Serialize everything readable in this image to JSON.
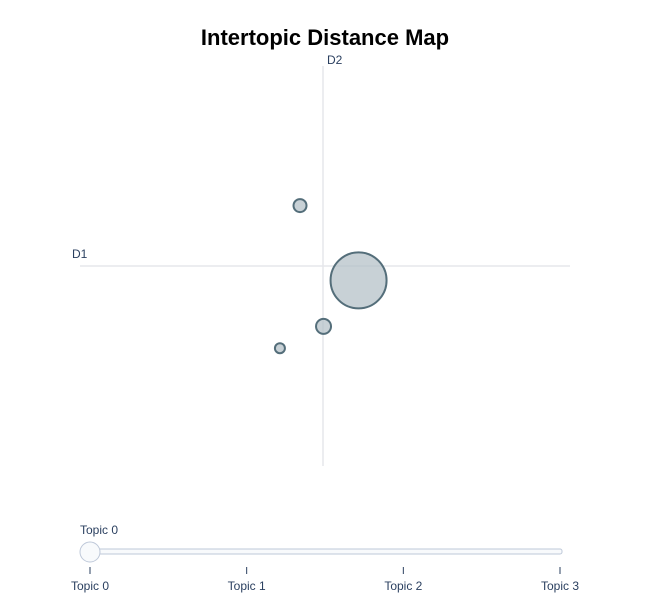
{
  "chart_data": {
    "type": "scatter",
    "title": "Intertopic Distance Map",
    "xlabel": "D1",
    "ylabel": "D2",
    "xlim": [
      -10,
      10
    ],
    "ylim": [
      -10,
      10
    ],
    "grid": false,
    "legend": "none",
    "marker_color": "#b0bec5",
    "marker_edge_color": "#546e7a",
    "points": [
      {
        "topic": "Topic 0",
        "x": 1.37,
        "y": -0.72,
        "size": 56
      },
      {
        "topic": "Topic 1",
        "x": -1.02,
        "y": 3.02,
        "size": 13
      },
      {
        "topic": "Topic 2",
        "x": -0.06,
        "y": -3.02,
        "size": 15
      },
      {
        "topic": "Topic 3",
        "x": -1.84,
        "y": -4.11,
        "size": 10
      }
    ]
  },
  "slider": {
    "current_label": "Topic 0",
    "selected_index": 0,
    "steps": [
      "Topic 0",
      "Topic 1",
      "Topic 2",
      "Topic 3"
    ],
    "track_color": "#f8fafc",
    "track_border_color": "#bec8d9"
  }
}
